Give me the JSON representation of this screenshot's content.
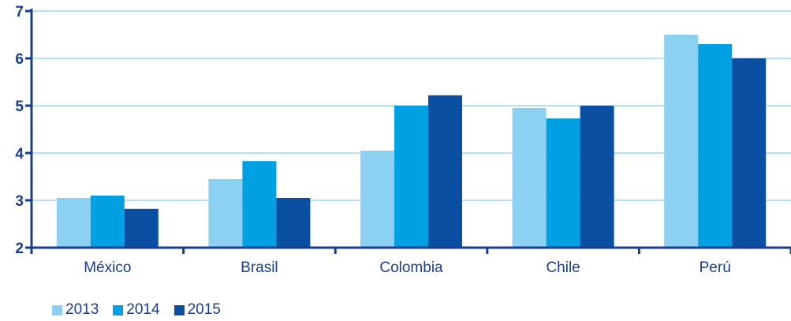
{
  "chart_data": {
    "type": "bar",
    "categories": [
      "México",
      "Brasil",
      "Colombia",
      "Chile",
      "Perú"
    ],
    "series": [
      {
        "name": "2013",
        "color": "#8dd1f2",
        "values": [
          3.05,
          3.45,
          4.05,
          4.95,
          6.5
        ]
      },
      {
        "name": "2014",
        "color": "#00a0e3",
        "values": [
          3.1,
          3.83,
          5.0,
          4.73,
          6.3
        ]
      },
      {
        "name": "2015",
        "color": "#0b4fa2",
        "values": [
          2.82,
          3.05,
          5.22,
          5.0,
          6.0
        ]
      }
    ],
    "ylim": [
      2,
      7
    ],
    "yticks": [
      "2",
      "3",
      "4",
      "5",
      "6",
      "7"
    ],
    "grid": true,
    "legend_position": "bottom-left",
    "axis_color": "#1a3d8f",
    "grid_color": "#9fd6f2"
  }
}
